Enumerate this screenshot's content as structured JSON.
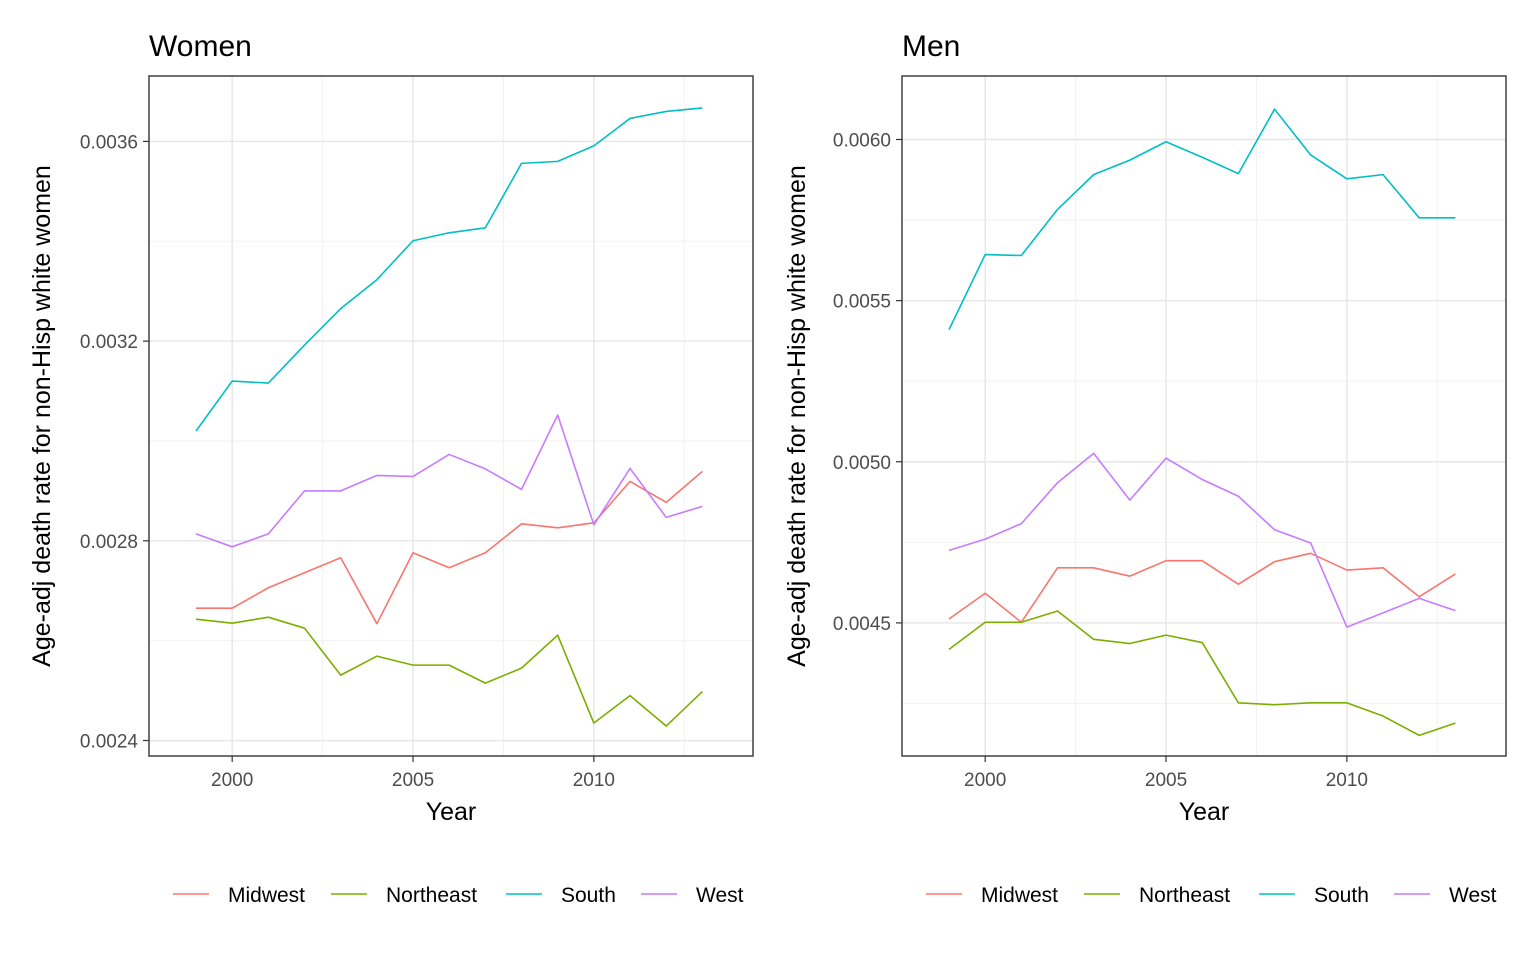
{
  "chart_data": [
    {
      "type": "line",
      "title": "Women",
      "xlabel": "Year",
      "ylabel": "Age-adj death rate for non-Hisp white women",
      "x": [
        1999,
        2000,
        2001,
        2002,
        2003,
        2004,
        2005,
        2006,
        2007,
        2008,
        2009,
        2010,
        2011,
        2012,
        2013
      ],
      "xlim": [
        1997.7,
        2014.4
      ],
      "ylim": [
        0.002369,
        0.003731
      ],
      "xticks": [
        2000,
        2005,
        2010
      ],
      "xtick_labels": [
        "2000",
        "2005",
        "2010"
      ],
      "yticks": [
        0.0024,
        0.0028,
        0.0032,
        0.0036
      ],
      "ytick_labels": [
        "0.0024",
        "0.0028",
        "0.0032",
        "0.0036"
      ],
      "grid": true,
      "legend_position": "bottom",
      "series": [
        {
          "name": "Midwest",
          "color": "#F8766D",
          "values": [
            0.002665,
            0.002665,
            0.002706,
            0.002736,
            0.002766,
            0.002634,
            0.002776,
            0.002746,
            0.002776,
            0.002834,
            0.002826,
            0.002836,
            0.002919,
            0.002877,
            0.002939
          ]
        },
        {
          "name": "Northeast",
          "color": "#7CAE00",
          "values": [
            0.002643,
            0.002635,
            0.002647,
            0.002625,
            0.002531,
            0.002569,
            0.002551,
            0.002551,
            0.002515,
            0.002545,
            0.002611,
            0.002435,
            0.00249,
            0.002429,
            0.002498
          ]
        },
        {
          "name": "South",
          "color": "#00BFC4",
          "values": [
            0.00302,
            0.00312,
            0.003116,
            0.003192,
            0.003265,
            0.003323,
            0.003401,
            0.003417,
            0.003427,
            0.003556,
            0.00356,
            0.003591,
            0.003646,
            0.00366,
            0.003667
          ]
        },
        {
          "name": "West",
          "color": "#C77CFF",
          "values": [
            0.002814,
            0.002788,
            0.002814,
            0.0029,
            0.0029,
            0.002931,
            0.002929,
            0.002973,
            0.002944,
            0.002903,
            0.003052,
            0.002832,
            0.002945,
            0.002847,
            0.002869
          ]
        }
      ]
    },
    {
      "type": "line",
      "title": "Men",
      "xlabel": "Year",
      "ylabel": "Age-adj death rate for non-Hisp white women",
      "x": [
        1999,
        2000,
        2001,
        2002,
        2003,
        2004,
        2005,
        2006,
        2007,
        2008,
        2009,
        2010,
        2011,
        2012,
        2013
      ],
      "xlim": [
        1997.7,
        2014.4
      ],
      "ylim": [
        0.004087,
        0.006197
      ],
      "xticks": [
        2000,
        2005,
        2010
      ],
      "xtick_labels": [
        "2000",
        "2005",
        "2010"
      ],
      "yticks": [
        0.0045,
        0.005,
        0.0055,
        0.006
      ],
      "ytick_labels": [
        "0.0045",
        "0.0050",
        "0.0055",
        "0.0060"
      ],
      "grid": true,
      "legend_position": "bottom",
      "series": [
        {
          "name": "Midwest",
          "color": "#F8766D",
          "values": [
            0.004512,
            0.004592,
            0.004502,
            0.004671,
            0.004671,
            0.004645,
            0.004693,
            0.004693,
            0.00462,
            0.00469,
            0.004716,
            0.004664,
            0.004671,
            0.004581,
            0.004652
          ]
        },
        {
          "name": "Northeast",
          "color": "#7CAE00",
          "values": [
            0.004418,
            0.004502,
            0.004502,
            0.004537,
            0.004449,
            0.004436,
            0.004462,
            0.004439,
            0.004252,
            0.004246,
            0.004252,
            0.004252,
            0.004211,
            0.004151,
            0.004189
          ]
        },
        {
          "name": "South",
          "color": "#00BFC4",
          "values": [
            0.00541,
            0.005643,
            0.00564,
            0.005783,
            0.005891,
            0.005936,
            0.005993,
            0.005945,
            0.005894,
            0.006094,
            0.005952,
            0.005878,
            0.005891,
            0.005757,
            0.005757
          ]
        },
        {
          "name": "West",
          "color": "#C77CFF",
          "values": [
            0.004725,
            0.00476,
            0.004808,
            0.004935,
            0.005026,
            0.004881,
            0.005011,
            0.004945,
            0.004893,
            0.004789,
            0.004748,
            0.004487,
            0.004531,
            0.004576,
            0.004538
          ]
        }
      ]
    }
  ]
}
